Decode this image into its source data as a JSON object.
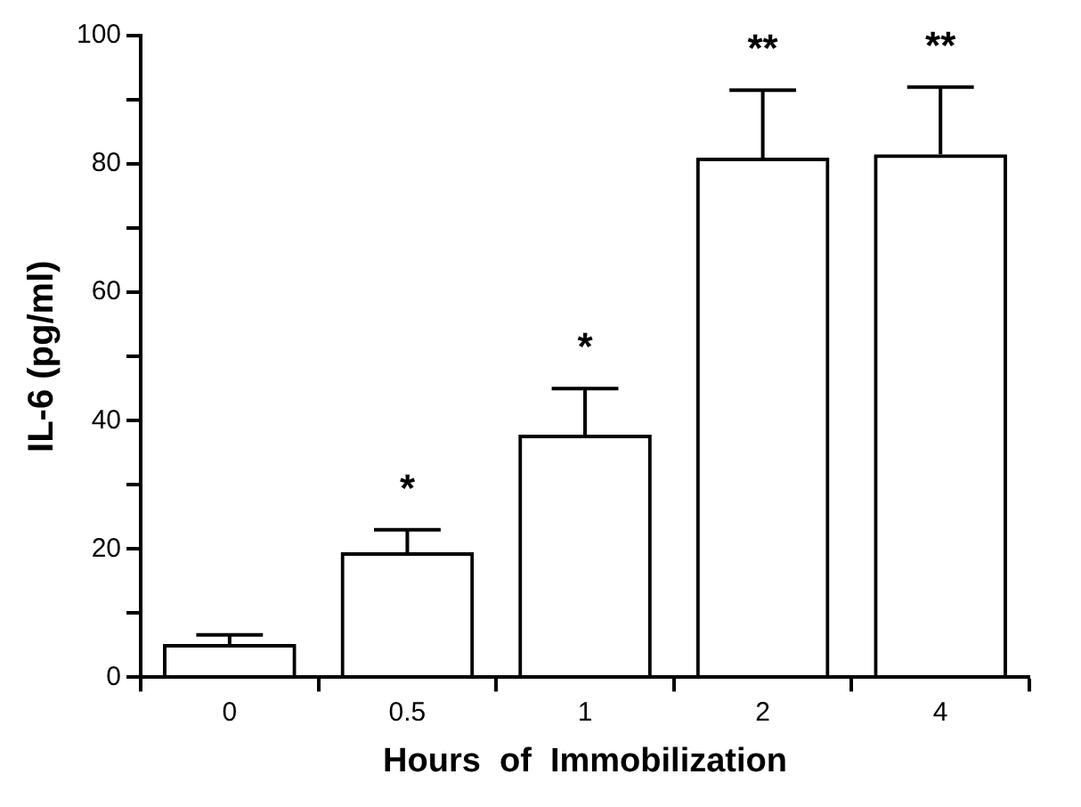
{
  "chart_data": {
    "type": "bar",
    "xlabel": "Hours  of  Immobilization",
    "ylabel": "IL-6 (pg/ml)",
    "categories": [
      "0",
      "0.5",
      "1",
      "2",
      "4"
    ],
    "values": [
      5.2,
      19.5,
      37.8,
      81,
      81.5
    ],
    "errors": [
      [
        5.2,
        6.6
      ],
      [
        19.5,
        23
      ],
      [
        37.8,
        45
      ],
      [
        81,
        91.5
      ],
      [
        81.5,
        92
      ]
    ],
    "color": "#000000",
    "ylim": [
      0,
      100
    ],
    "yticks": [
      0,
      {
        "value": 10,
        "label": null
      },
      20,
      {
        "value": 30,
        "label": null
      },
      40,
      {
        "value": 50,
        "label": null
      },
      60,
      {
        "value": 70,
        "label": null
      },
      80,
      {
        "value": 90,
        "label": null
      },
      100
    ],
    "annotations": [
      {
        "text": "*",
        "x": "0.5",
        "y": 19.5
      },
      {
        "text": "*",
        "x": "1",
        "y": 37.8
      },
      {
        "text": "**",
        "x": "2",
        "y": 81
      },
      {
        "text": "**",
        "x": "4",
        "y": 81.5
      }
    ],
    "grid": false,
    "legend": false
  }
}
